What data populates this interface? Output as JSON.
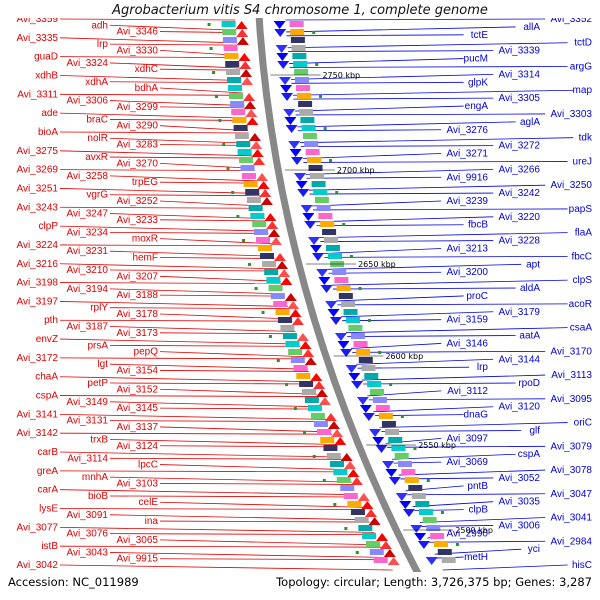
{
  "title": "Agrobacterium vitis S4 chromosome 1, complete genome",
  "accession_text": "Accession: NC_011989",
  "topology_text": "Topology: circular; Length: 3,726,375 bp; Genes: 3,287",
  "colors": {
    "left_strand": "#e00000",
    "right_strand": "#0000dd",
    "backbone": "#888888",
    "rna_marker": "#229922"
  },
  "scale_labels": [
    "2750 kbp",
    "2700 kbp",
    "2650 kbp",
    "2600 kbp",
    "2550 kbp",
    "2500 kbp"
  ],
  "left_genes": [
    "Avi_3359",
    "adh",
    "Avi_3346",
    "Avi_3335",
    "lrp",
    "Avi_3330",
    "guaD",
    "Avi_3324",
    "xdhC",
    "xdhB",
    "xdhA",
    "bdhA",
    "Avi_3311",
    "Avi_3306",
    "Avi_3299",
    "ade",
    "braC",
    "Avi_3290",
    "bioA",
    "nolR",
    "Avi_3283",
    "Avi_3275",
    "avxR",
    "Avi_3270",
    "Avi_3269",
    "Avi_3258",
    "trpEG",
    "Avi_3251",
    "vgrG",
    "Avi_3252",
    "Avi_3243",
    "Avi_3247",
    "Avi_3233",
    "clpP",
    "Avi_3234",
    "moxR",
    "Avi_3224",
    "Avi_3231",
    "hemF",
    "Avi_3216",
    "Avi_3210",
    "Avi_3207",
    "Avi_3198",
    "Avi_3194",
    "Avi_3188",
    "Avi_3197",
    "rplY",
    "Avi_3178",
    "pth",
    "Avi_3187",
    "Avi_3173",
    "envZ",
    "prsA",
    "pepQ",
    "Avi_3172",
    "lgt",
    "Avi_3154",
    "chaA",
    "petP",
    "Avi_3152",
    "cspA",
    "Avi_3149",
    "Avi_3145",
    "Avi_3141",
    "Avi_3131",
    "Avi_3137",
    "Avi_3142",
    "trxB",
    "Avi_3124",
    "carB",
    "Avi_3114",
    "lpcC",
    "greA",
    "mnhA",
    "Avi_3103",
    "carA",
    "bioB",
    "celE",
    "lysE",
    "Avi_3091",
    "ina",
    "Avi_3077",
    "Avi_3076",
    "Avi_3065",
    "istB",
    "Avi_3043",
    "Avi_9915",
    "Avi_3042"
  ],
  "right_genes": [
    "Avi_3352",
    "allA",
    "tctE",
    "tctD",
    "Avi_3339",
    "pucM",
    "argG",
    "Avi_3314",
    "glpK",
    "map",
    "Avi_3305",
    "engA",
    "Avi_3303",
    "aglA",
    "Avi_3276",
    "tdk",
    "Avi_3272",
    "Avi_3271",
    "ureJ",
    "Avi_3266",
    "Avi_9916",
    "Avi_3250",
    "Avi_3242",
    "Avi_3239",
    "papS",
    "Avi_3220",
    "fbcB",
    "flaA",
    "Avi_3228",
    "Avi_3213",
    "fbcC",
    "apt",
    "Avi_3200",
    "clpS",
    "aldA",
    "proC",
    "acoR",
    "Avi_3179",
    "Avi_3159",
    "csaA",
    "aatA",
    "Avi_3146",
    "Avi_3170",
    "Avi_3144",
    "lrp",
    "Avi_3113",
    "rpoD",
    "Avi_3112",
    "Avi_3095",
    "Avi_3120",
    "dnaG",
    "oriC",
    "glf",
    "Avi_3097",
    "Avi_3079",
    "cspA",
    "Avi_3069",
    "Avi_3078",
    "Avi_3052",
    "pntB",
    "Avi_3047",
    "Avi_3035",
    "clpB",
    "Avi_3041",
    "Avi_3006",
    "Avi_2990",
    "Avi_2984",
    "yci",
    "metH",
    "hisC"
  ]
}
